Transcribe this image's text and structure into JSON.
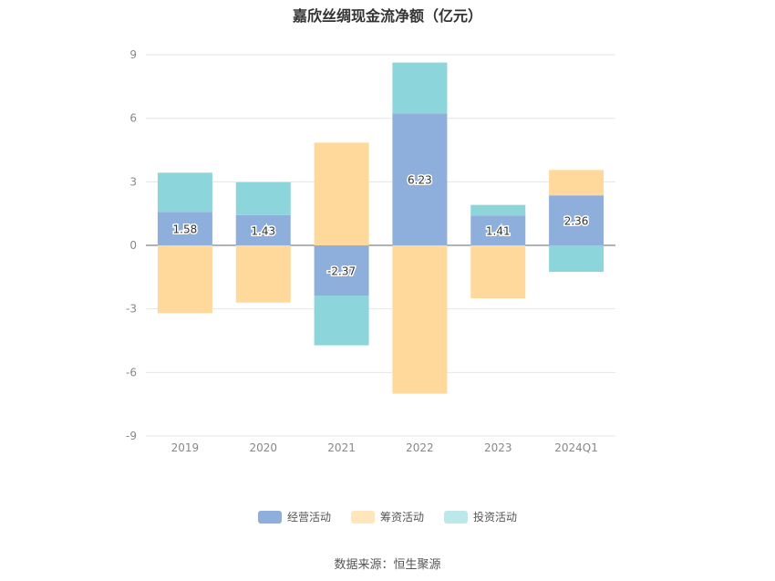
{
  "chart_data": {
    "type": "bar",
    "stacked": true,
    "title": "嘉欣丝绸现金流净额（亿元）",
    "categories": [
      "2019",
      "2020",
      "2021",
      "2022",
      "2023",
      "2024Q1"
    ],
    "ylim": [
      -9,
      9
    ],
    "yticks": [
      "9",
      "6",
      "3",
      "0",
      "-3",
      "-6",
      "-9"
    ],
    "ytick_values": [
      9,
      6,
      3,
      0,
      -3,
      -6,
      -9
    ],
    "grid": true,
    "legend_position": "bottom",
    "series": [
      {
        "name": "经营活动",
        "color": "#8eaedc",
        "values": [
          1.58,
          1.43,
          -2.37,
          6.23,
          1.41,
          2.36
        ],
        "labels": [
          "1.58",
          "1.43",
          "-2.37",
          "6.23",
          "1.41",
          "2.36"
        ]
      },
      {
        "name": "筹资活动",
        "color": "#ffd99b",
        "values": [
          -3.2,
          -2.7,
          4.85,
          -7.0,
          -2.5,
          1.2
        ]
      },
      {
        "name": "投资活动",
        "color": "#8cd6db",
        "values": [
          1.85,
          1.55,
          -2.35,
          2.4,
          0.5,
          -1.25
        ]
      }
    ],
    "source": "数据来源：恒生聚源"
  }
}
